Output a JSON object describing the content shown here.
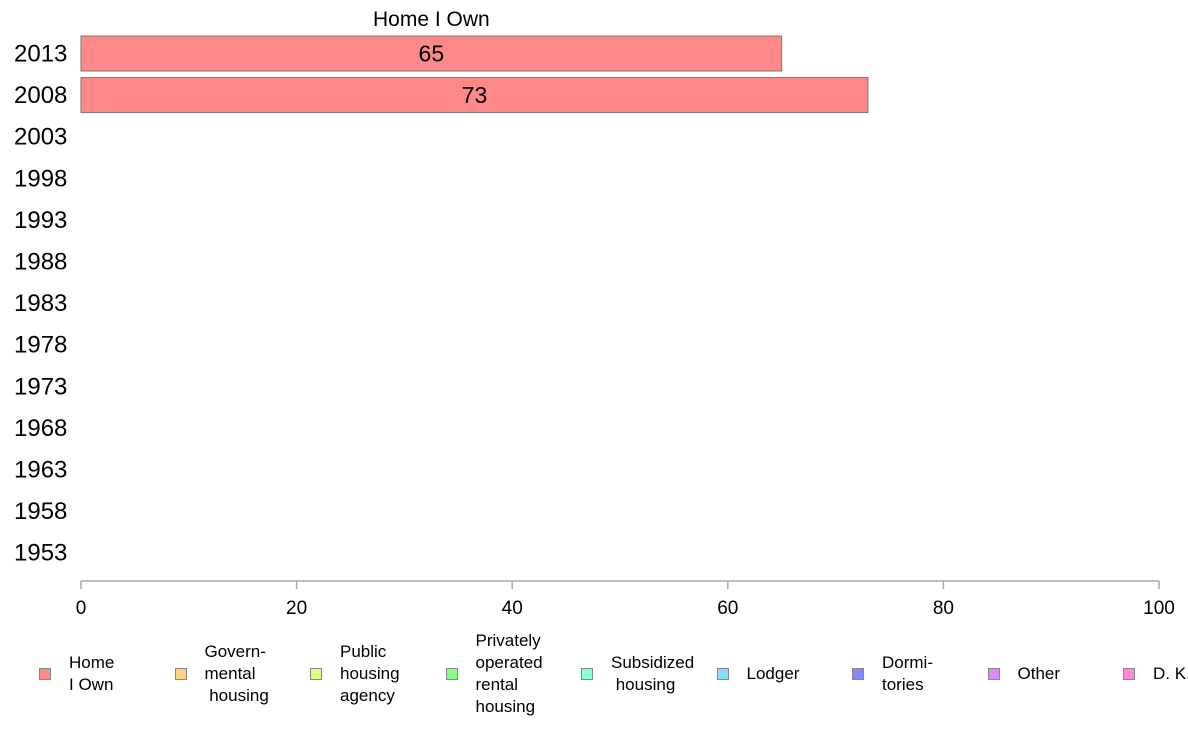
{
  "chart_data": {
    "type": "bar",
    "orientation": "horizontal",
    "title": "Home I Own",
    "categories": [
      "2013",
      "2008",
      "2003",
      "1998",
      "1993",
      "1988",
      "1983",
      "1978",
      "1973",
      "1968",
      "1963",
      "1958",
      "1953"
    ],
    "series": [
      {
        "name": "Home I Own",
        "color": "#ff8888",
        "values": [
          65,
          73,
          null,
          null,
          null,
          null,
          null,
          null,
          null,
          null,
          null,
          null,
          null
        ]
      }
    ],
    "xlim": [
      0,
      100
    ],
    "xticks": [
      "0",
      "20",
      "40",
      "60",
      "80",
      "100"
    ],
    "grid": false,
    "legend_position": "bottom",
    "legend": [
      {
        "label": "Home\nI Own",
        "color": "#ff8888"
      },
      {
        "label": "Govern-\nmental\n housing",
        "color": "#ffd080"
      },
      {
        "label": "Public\nhousing\nagency",
        "color": "#ddff80"
      },
      {
        "label": "Privately\noperated\nrental\nhousing",
        "color": "#88ff88"
      },
      {
        "label": "Subsidized\n housing",
        "color": "#88ffdd"
      },
      {
        "label": "Lodger",
        "color": "#88ddff"
      },
      {
        "label": "Dormi-\ntories",
        "color": "#8888ff"
      },
      {
        "label": "Other",
        "color": "#dd88ff"
      },
      {
        "label": "D. K.",
        "color": "#ff88dd"
      }
    ]
  }
}
